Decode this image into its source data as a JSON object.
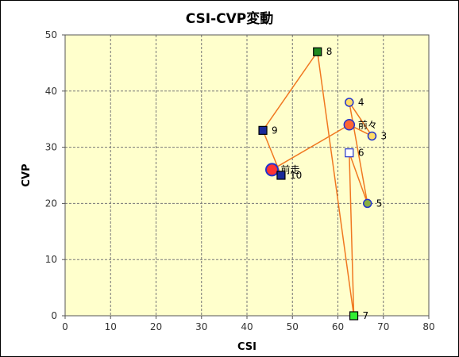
{
  "chart_data": {
    "type": "scatter",
    "title": "CSI-CVP変動",
    "xlabel": "CSI",
    "ylabel": "CVP",
    "xlim": [
      0,
      80
    ],
    "ylim": [
      0,
      50
    ],
    "xticks": [
      "0",
      "10",
      "20",
      "30",
      "40",
      "50",
      "60",
      "70",
      "80"
    ],
    "yticks": [
      "0",
      "10",
      "20",
      "30",
      "40",
      "50"
    ],
    "grid": true,
    "colors": {
      "plot_bg": "#ffffcc",
      "grid": "#777777",
      "line": "#f07820",
      "square_dark": "#1a2a9a",
      "square_green": "#1f8a1f",
      "square_light_green": "#33ee33",
      "square_hollow": "#ffffff",
      "circle_yellow": "#ffdd66",
      "circle_olive": "#8ab040",
      "circle_orange": "#ff6633",
      "circle_red": "#ff3333",
      "marker_edge": "#2233cc"
    },
    "path_order": [
      "前走",
      "前々",
      "3",
      "4",
      "5",
      "6",
      "7",
      "8",
      "9",
      "10"
    ],
    "points": [
      {
        "label": "前走",
        "x": 45.5,
        "y": 26,
        "marker": "circle",
        "fill": "circle_red",
        "size": "large"
      },
      {
        "label": "前々",
        "x": 62.5,
        "y": 34,
        "marker": "circle",
        "fill": "circle_orange",
        "size": "medium"
      },
      {
        "label": "3",
        "x": 67.5,
        "y": 32,
        "marker": "circle",
        "fill": "circle_yellow",
        "size": "small"
      },
      {
        "label": "4",
        "x": 62.5,
        "y": 38,
        "marker": "circle",
        "fill": "circle_yellow",
        "size": "small"
      },
      {
        "label": "5",
        "x": 66.5,
        "y": 20,
        "marker": "circle",
        "fill": "circle_olive",
        "size": "small"
      },
      {
        "label": "6",
        "x": 62.5,
        "y": 29,
        "marker": "square",
        "fill": "square_hollow",
        "size": "small"
      },
      {
        "label": "7",
        "x": 63.5,
        "y": 0,
        "marker": "square",
        "fill": "square_light_green",
        "size": "small"
      },
      {
        "label": "8",
        "x": 55.5,
        "y": 47,
        "marker": "square",
        "fill": "square_green",
        "size": "small"
      },
      {
        "label": "9",
        "x": 43.5,
        "y": 33,
        "marker": "square",
        "fill": "square_dark",
        "size": "small"
      },
      {
        "label": "10",
        "x": 47.5,
        "y": 25,
        "marker": "square",
        "fill": "square_dark",
        "size": "small"
      }
    ]
  }
}
